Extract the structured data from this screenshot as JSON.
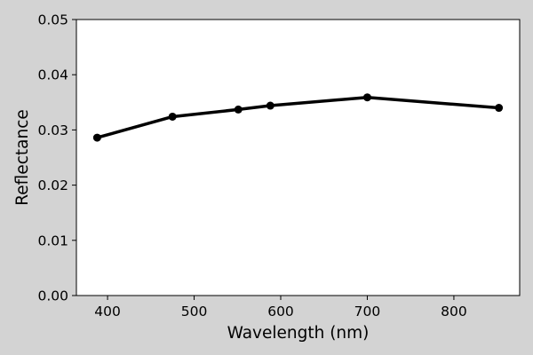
{
  "chart_data": {
    "type": "line",
    "title": "",
    "xlabel": "Wavelength (nm)",
    "ylabel": "Reflectance",
    "xlim": [
      364,
      876
    ],
    "ylim": [
      0.0,
      0.05
    ],
    "grid": false,
    "xticks": [
      400,
      500,
      600,
      700,
      800
    ],
    "xtick_labels": [
      "400",
      "500",
      "600",
      "700",
      "800"
    ],
    "yticks": [
      0.0,
      0.01,
      0.02,
      0.03,
      0.04,
      0.05
    ],
    "ytick_labels": [
      "0.00",
      "0.01",
      "0.02",
      "0.03",
      "0.04",
      "0.05"
    ],
    "series": [
      {
        "color": "#000000",
        "marker": "circle",
        "x": [
          388,
          475,
          551,
          588,
          700,
          852
        ],
        "y": [
          0.0286,
          0.0324,
          0.0337,
          0.0344,
          0.0359,
          0.034
        ]
      }
    ]
  },
  "colors": {
    "background": "#d3d3d3",
    "plot_area": "#ffffff",
    "line": "#000000"
  }
}
